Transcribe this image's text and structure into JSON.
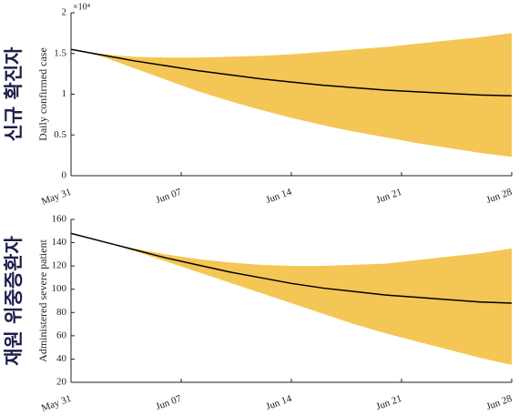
{
  "chart_data": [
    {
      "type": "line",
      "side_label": "신규 확진자",
      "ylabel": "Daily confirmed case",
      "y_multiplier": "×10⁴",
      "x": [
        0,
        2,
        4,
        6,
        8,
        10,
        12,
        14,
        16,
        18,
        20,
        22,
        24,
        26,
        28
      ],
      "values": [
        1.55,
        1.48,
        1.41,
        1.35,
        1.29,
        1.24,
        1.19,
        1.15,
        1.11,
        1.08,
        1.05,
        1.03,
        1.01,
        0.99,
        0.98
      ],
      "band_upper": [
        1.55,
        1.49,
        1.46,
        1.45,
        1.45,
        1.46,
        1.47,
        1.49,
        1.52,
        1.55,
        1.58,
        1.62,
        1.66,
        1.7,
        1.75
      ],
      "band_lower": [
        1.55,
        1.46,
        1.32,
        1.18,
        1.04,
        0.92,
        0.81,
        0.71,
        0.62,
        0.54,
        0.47,
        0.4,
        0.34,
        0.28,
        0.23
      ],
      "color": "#000000",
      "band_color": "#f4c655",
      "xlim": [
        0,
        28
      ],
      "xticks": [
        {
          "value": 0,
          "label": "May 31"
        },
        {
          "value": 7,
          "label": "Jun 07"
        },
        {
          "value": 14,
          "label": "Jun 14"
        },
        {
          "value": 21,
          "label": "Jun 21"
        },
        {
          "value": 28,
          "label": "Jun 28"
        }
      ],
      "ylim": [
        0,
        2
      ],
      "yticks": [
        0,
        0.5,
        1,
        1.5,
        2
      ]
    },
    {
      "type": "line",
      "side_label": "재원 위중증환자",
      "ylabel": "Administered severe patient",
      "x": [
        0,
        2,
        4,
        6,
        8,
        10,
        12,
        14,
        16,
        18,
        20,
        22,
        24,
        26,
        28
      ],
      "values": [
        148,
        141,
        134,
        127,
        121,
        115,
        110,
        105,
        101,
        98,
        95,
        93,
        91,
        89,
        88
      ],
      "band_upper": [
        148,
        141,
        135,
        130,
        126,
        123,
        121,
        120,
        120,
        121,
        122,
        125,
        128,
        131,
        135
      ],
      "band_lower": [
        148,
        141,
        133,
        124,
        115,
        106,
        97,
        88,
        79,
        70,
        62,
        55,
        48,
        41,
        35
      ],
      "color": "#000000",
      "band_color": "#f4c655",
      "xlim": [
        0,
        28
      ],
      "xticks": [
        {
          "value": 0,
          "label": "May 31"
        },
        {
          "value": 7,
          "label": "Jun 07"
        },
        {
          "value": 14,
          "label": "Jun 14"
        },
        {
          "value": 21,
          "label": "Jun 21"
        },
        {
          "value": 28,
          "label": "Jun 28"
        }
      ],
      "ylim": [
        20,
        160
      ],
      "yticks": [
        20,
        40,
        60,
        80,
        100,
        120,
        140,
        160
      ]
    }
  ]
}
